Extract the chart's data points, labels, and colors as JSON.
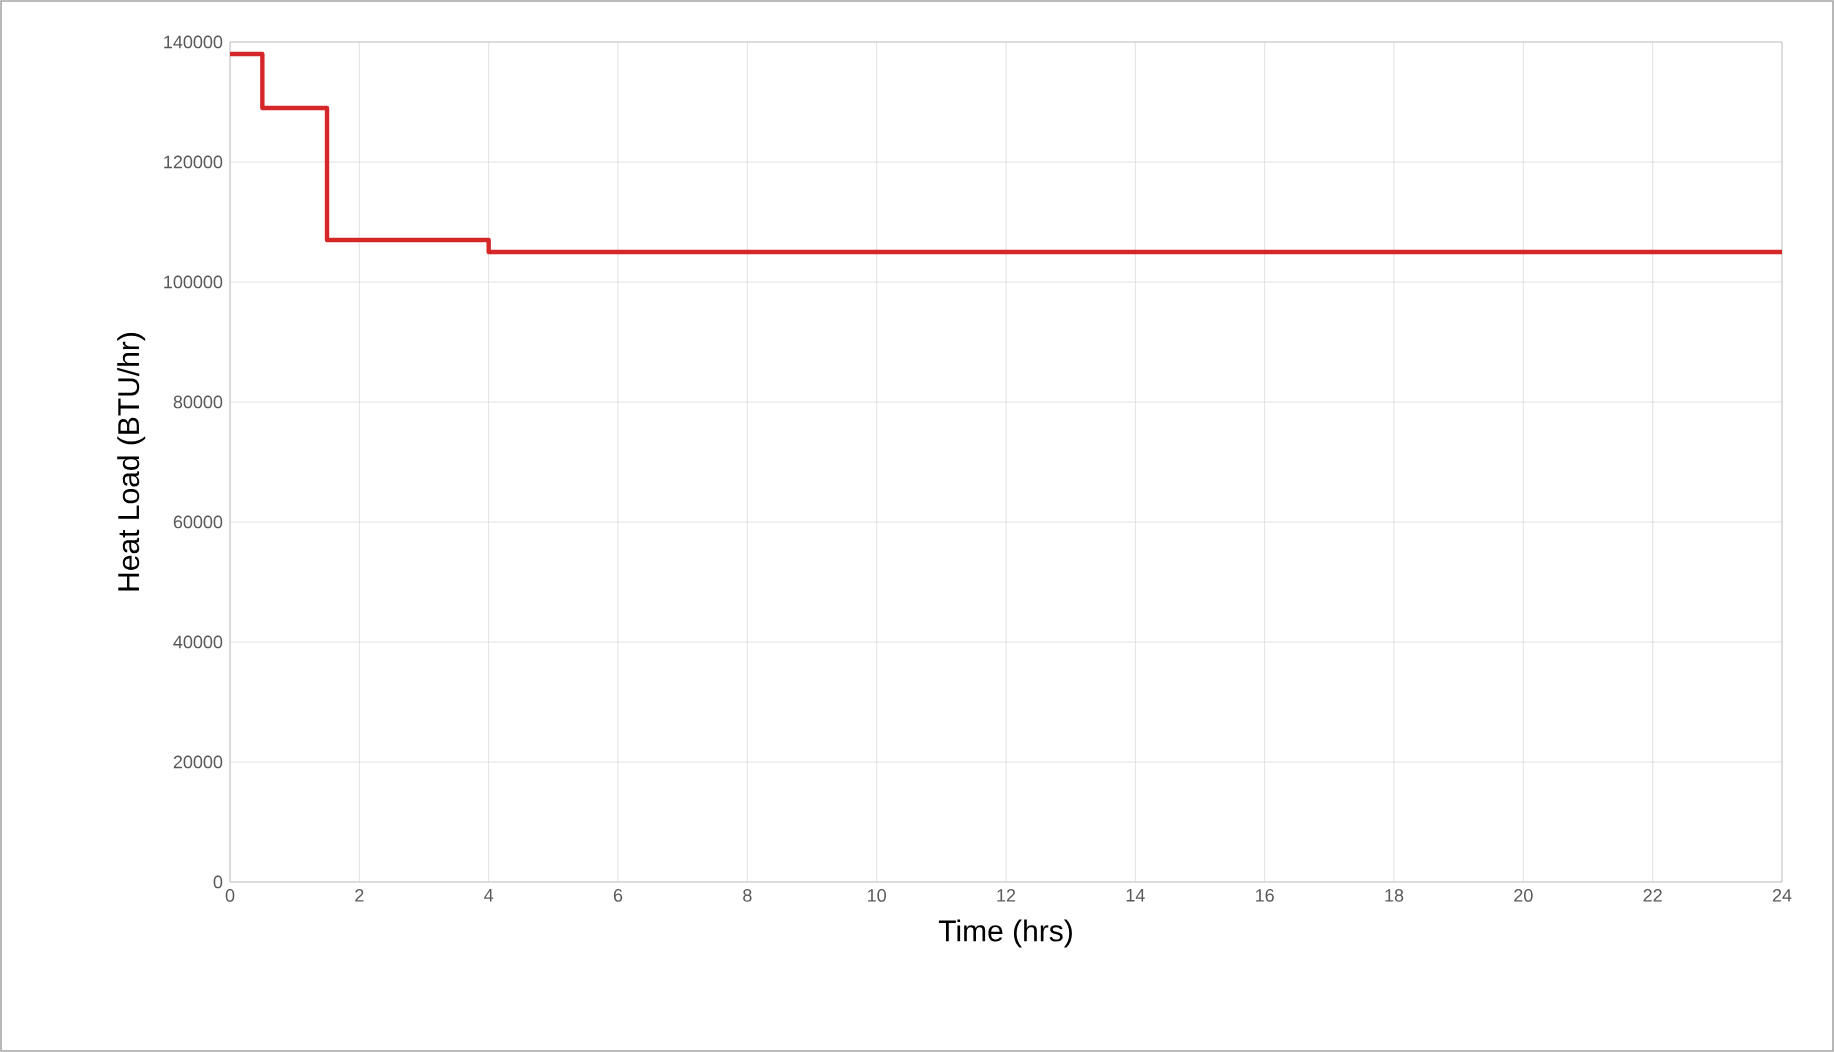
{
  "chart_data": {
    "type": "step",
    "xlabel": "Time (hrs)",
    "ylabel": "Heat Load (BTU/hr)",
    "x": [
      0,
      0.5,
      1.5,
      4,
      24
    ],
    "series": [
      {
        "color": "#d62728",
        "values": [
          138000,
          129000,
          107000,
          105000,
          105000
        ]
      }
    ],
    "xlim": [
      0,
      24
    ],
    "xticks": [
      0,
      2,
      4,
      6,
      8,
      10,
      12,
      14,
      16,
      18,
      20,
      22,
      24
    ],
    "ylim": [
      0,
      140000
    ],
    "yticks": [
      0,
      20000,
      40000,
      60000,
      80000,
      100000,
      120000,
      140000
    ],
    "grid": true
  }
}
